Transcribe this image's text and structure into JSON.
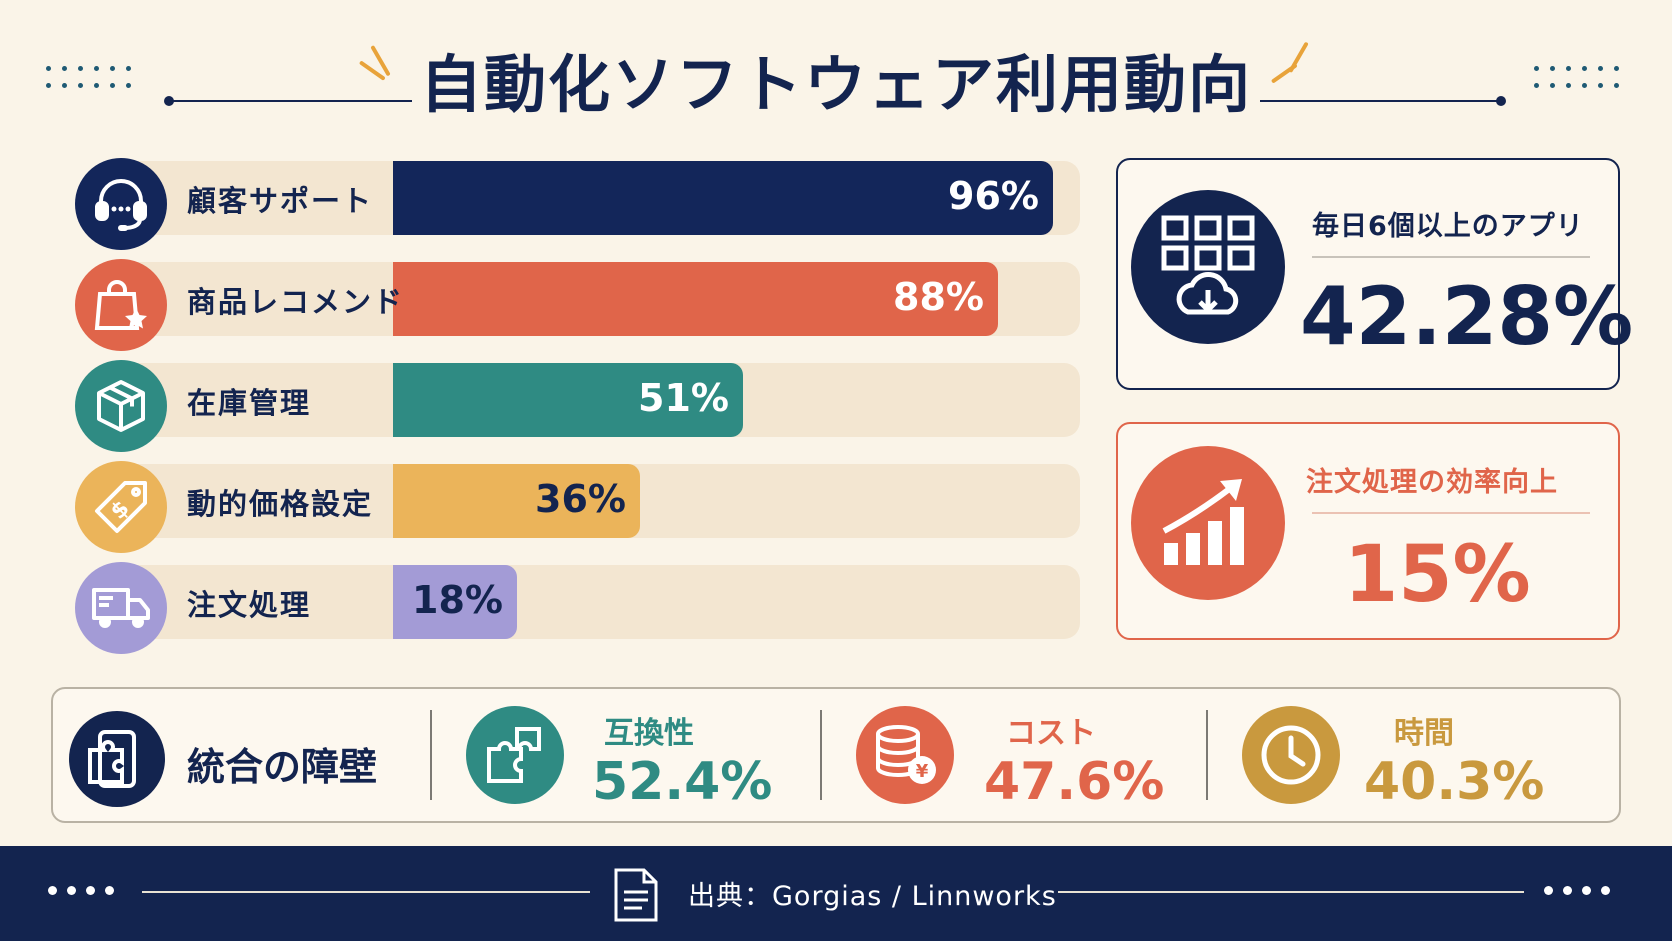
{
  "title": "自動化ソフトウェア利用動向",
  "chart_data": {
    "type": "bar",
    "orientation": "horizontal",
    "categories": [
      "顧客サポート",
      "商品レコメンド",
      "在庫管理",
      "動的価格設定",
      "注文処理"
    ],
    "values": [
      96,
      88,
      51,
      36,
      18
    ],
    "value_labels": [
      "96%",
      "88%",
      "51%",
      "36%",
      "18%"
    ],
    "xlim": [
      0,
      100
    ],
    "colors": [
      "#13265a",
      "#e0654a",
      "#2f8b83",
      "#ebb45a",
      "#a39bd6"
    ],
    "value_colors": [
      "#ffffff",
      "#ffffff",
      "#ffffff",
      "#13244f",
      "#13244f"
    ],
    "icons": [
      "headset-icon",
      "shopping-bag-star-icon",
      "box-icon",
      "price-tag-icon",
      "truck-icon"
    ]
  },
  "stats": [
    {
      "label": "毎日6個以上のアプリ",
      "value": "42.28%",
      "color": "#13244f",
      "icon": "app-grid-cloud-icon"
    },
    {
      "label": "注文処理の効率向上",
      "value": "15%",
      "color": "#e0654a",
      "icon": "growth-chart-icon"
    }
  ],
  "barriers": {
    "title": "統合の障壁",
    "title_icon": "puzzle-device-icon",
    "items": [
      {
        "label": "互換性",
        "value": "52.4%",
        "color": "#2f8b83",
        "icon": "puzzle-icon"
      },
      {
        "label": "コスト",
        "value": "47.6%",
        "color": "#e0654a",
        "icon": "coins-yen-icon"
      },
      {
        "label": "時間",
        "value": "40.3%",
        "color": "#c9993e",
        "icon": "clock-icon"
      }
    ]
  },
  "source": "出典：Gorgias / Linnworks"
}
